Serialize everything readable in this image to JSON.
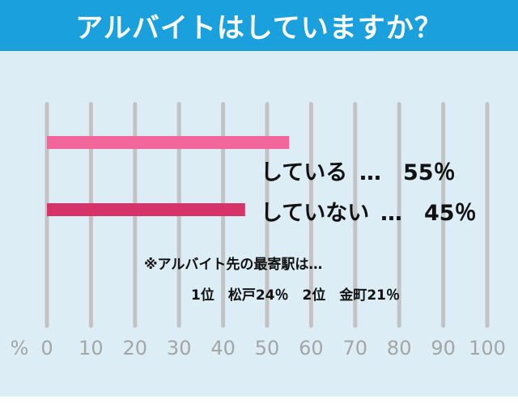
{
  "title": "アルバイトはしていますか？",
  "colors": {
    "header": "#1aa0dc",
    "panel": "#dcedf5",
    "gridline": "#c3c3c3",
    "bar_yes": "#f2679b",
    "bar_no": "#d5336a"
  },
  "chart_data": {
    "type": "bar",
    "orientation": "horizontal",
    "categories": [
      "している",
      "していない"
    ],
    "values": [
      55,
      45
    ],
    "unit": "%",
    "xlim": [
      0,
      100
    ],
    "x_ticks": [
      0,
      10,
      20,
      30,
      40,
      50,
      60,
      70,
      80,
      90,
      100
    ],
    "x_unit_label": "%",
    "grid": true,
    "bar_labels": [
      {
        "category": "している",
        "dots": "…",
        "value_text": "55％"
      },
      {
        "category": "していない",
        "dots": "…",
        "value_text": "45％"
      }
    ],
    "annotations": [
      "※アルバイト先の最寄駅は…",
      "1位　松戸24％　2位　金町21％"
    ]
  }
}
